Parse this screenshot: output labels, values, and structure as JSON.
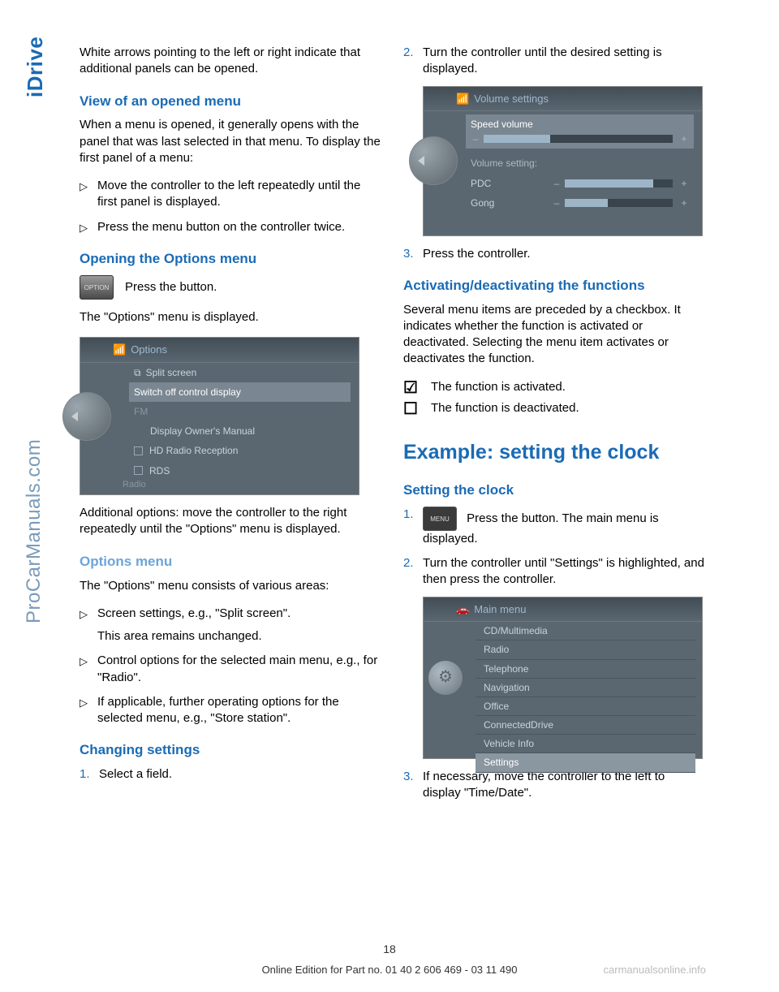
{
  "sidebar": {
    "label_idrive": "iDrive",
    "label_site": "ProCarManuals.com"
  },
  "left_column": {
    "intro_para": "White arrows pointing to the left or right indicate that additional panels can be opened.",
    "h_view_opened": "View of an opened menu",
    "view_para": "When a menu is opened, it generally opens with the panel that was last selected in that menu. To display the first panel of a menu:",
    "view_list": [
      "Move the controller to the left repeatedly until the first panel is displayed.",
      "Press the menu button on the controller twice."
    ],
    "h_open_options": "Opening the Options menu",
    "option_btn_label": "OPTION",
    "option_text": "Press the button.",
    "options_displayed": "The \"Options\" menu is displayed.",
    "options_screenshot": {
      "header": "Options",
      "items": [
        {
          "label": "Split screen",
          "type": "check"
        },
        {
          "label": "Switch off control display",
          "type": "highlighted"
        },
        {
          "label": "FM",
          "type": "dim"
        },
        {
          "label": "Display Owner's Manual",
          "type": "indented"
        },
        {
          "label": "HD Radio Reception",
          "type": "checkbox"
        },
        {
          "label": "RDS",
          "type": "checkbox"
        }
      ],
      "bottom": "Radio"
    },
    "additional_options": "Additional options: move the controller to the right repeatedly until the \"Options\" menu is displayed.",
    "h_options_menu": "Options menu",
    "options_menu_para": "The \"Options\" menu consists of various areas:",
    "options_list": [
      {
        "main": "Screen settings, e.g., \"Split screen\".",
        "sub": "This area remains unchanged."
      },
      {
        "main": "Control options for the selected main menu, e.g., for \"Radio\"."
      },
      {
        "main": "If applicable, further operating options for the selected menu, e.g., \"Store station\"."
      }
    ],
    "h_changing": "Changing settings",
    "changing_step1_num": "1.",
    "changing_step1": "Select a field."
  },
  "right_column": {
    "step2_num": "2.",
    "step2": "Turn the controller until the desired setting is displayed.",
    "volume_screenshot": {
      "header": "Volume settings",
      "highlighted": "Speed volume",
      "speed_volume_fill": 35,
      "sub_label": "Volume setting:",
      "rows": [
        {
          "label": "PDC",
          "fill": 82
        },
        {
          "label": "Gong",
          "fill": 40
        }
      ]
    },
    "step3_num": "3.",
    "step3": "Press the controller.",
    "h_activating": "Activating/deactivating the functions",
    "activating_para": "Several menu items are preceded by a checkbox. It indicates whether the function is activated or deactivated. Selecting the menu item activates or deactivates the function.",
    "check_activated": "The function is activated.",
    "check_deactivated": "The function is deactivated.",
    "h_example": "Example: setting the clock",
    "h_setting_clock": "Setting the clock",
    "clock_step1_num": "1.",
    "menu_btn_label": "MENU",
    "clock_step1": "Press the button. The main menu is displayed.",
    "clock_step2_num": "2.",
    "clock_step2": "Turn the controller until \"Settings\" is highlighted, and then press the controller.",
    "mainmenu_screenshot": {
      "header": "Main menu",
      "items": [
        "CD/Multimedia",
        "Radio",
        "Telephone",
        "Navigation",
        "Office",
        "ConnectedDrive",
        "Vehicle Info",
        "Settings"
      ],
      "selected_index": 7
    },
    "clock_step3_num": "3.",
    "clock_step3": "If necessary, move the controller to the left to display \"Time/Date\"."
  },
  "footer": {
    "page_number": "18",
    "edition": "Online Edition for Part no. 01 40 2 606 469 - 03 11 490",
    "watermark": "carmanualsonline.info"
  }
}
